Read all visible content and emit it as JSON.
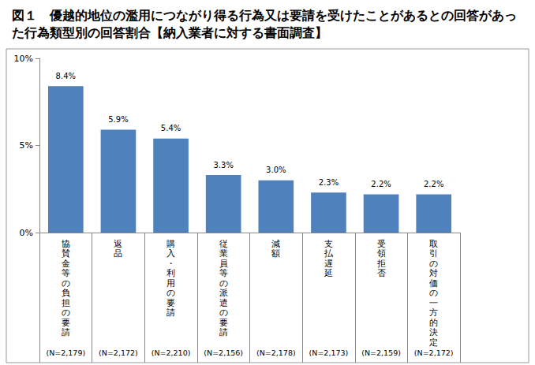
{
  "chart_data": {
    "type": "bar",
    "title": "図１　優越的地位の濫用につながり得る行為又は要請を受けたことがあるとの回答があった行為類型別の回答割合【納入業者に対する書面調査】",
    "categories": [
      "協賛金等の負担の要請",
      "返品",
      "購入・利用の要請",
      "従業員等の派遣の要請",
      "減額",
      "支払遅延",
      "受領拒否",
      "取引の対価の一方的決定"
    ],
    "sample_size_labels": [
      "(N=2,179)",
      "(N=2,172)",
      "(N=2,210)",
      "(N=2,156)",
      "(N=2,178)",
      "(N=2,173)",
      "(N=2,159)",
      "(N=2,172)"
    ],
    "values": [
      8.4,
      5.9,
      5.4,
      3.3,
      3.0,
      2.3,
      2.2,
      2.2
    ],
    "value_labels": [
      "8.4%",
      "5.9%",
      "5.4%",
      "3.3%",
      "3.0%",
      "2.3%",
      "2.2%",
      "2.2%"
    ],
    "data_labels": true,
    "color": "#4f81bd",
    "ylim": [
      0,
      10
    ],
    "yticks": [
      {
        "value": 0,
        "label": "0%"
      },
      {
        "value": 5,
        "label": "5%"
      },
      {
        "value": 10,
        "label": "10%"
      }
    ],
    "grid": false
  }
}
